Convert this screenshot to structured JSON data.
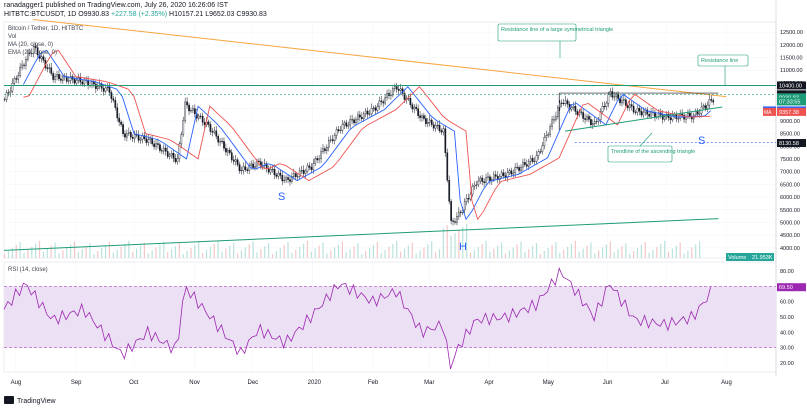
{
  "header": {
    "publish_line": "ranadagger1 published on TradingView.com, July 26, 2020 16:26:06 IST",
    "symbol_line_prefix": "HITBTC:BTCUSDT, 1D",
    "ohlc": {
      "open_label": "O",
      "open": "9930.83",
      "high_label": "H",
      "high": "10157.21",
      "low_label": "L",
      "low": "9652.03",
      "close_label": "C",
      "close": "9930.83",
      "change": "+227.58 (+2.35%)"
    },
    "title_short": "Bitcoin / Tether, 1D, HITBTC",
    "indicator_1": "Vol",
    "indicator_2": "MA (20, close, 0)",
    "indicator_3": "EMA (20, close, 0)"
  },
  "colors": {
    "up": "#26a69a",
    "down": "#ef5350",
    "candle": "#131722",
    "ema": "#2962ff",
    "ma": "#ef5350",
    "resistance": "#f7a540",
    "trend": "#1e9c78",
    "rsi_line": "#9c27b0",
    "rsi_band": "#ece0f5",
    "price_tag_blue": "#2962ff",
    "price_tag_green": "#1e9c78",
    "price_tag_dark": "#131722",
    "annotation": "#2962ff"
  },
  "chart_data": [
    {
      "type": "candlestick",
      "title": "Bitcoin / Tether, 1D, HITBTC",
      "y_ticks": [
        "12500.00",
        "12000.00",
        "11500.00",
        "11000.00",
        "10500.00",
        "9500.00",
        "9000.00",
        "8500.00",
        "8000.00",
        "7500.00",
        "7000.00",
        "6500.00",
        "6000.00",
        "5500.00",
        "5000.00",
        "4500.00",
        "4000.00"
      ],
      "ylim": [
        3600,
        12900
      ],
      "x_ticks": [
        "Aug",
        "Sep",
        "Oct",
        "Nov",
        "Dec",
        "2020",
        "Feb",
        "Mar",
        "Apr",
        "May",
        "Jun",
        "Jul",
        "Aug"
      ],
      "price_tags": [
        {
          "label": "10400.00",
          "value": 10400,
          "style": "dark"
        },
        {
          "label": "10400.00",
          "value": 10050,
          "style": "dark"
        },
        {
          "label": "10000.00",
          "value": 9990,
          "style": "dark"
        },
        {
          "label": "9930.83",
          "value": 9930.83,
          "style": "green"
        },
        {
          "label": "07:33:55",
          "value": 9770,
          "style": "green"
        },
        {
          "label": "9415.35",
          "value": 9415.35,
          "style": "blue",
          "series": "EMA"
        },
        {
          "label": "9357.38",
          "value": 9357.38,
          "style": "red",
          "series": "MA"
        },
        {
          "label": "8130.58",
          "value": 8130.58,
          "style": "dark"
        }
      ],
      "volume_label": "Volume",
      "volume_value": "21.953K",
      "annotations": [
        {
          "text": "Resistance line of a large symmetrical triangle"
        },
        {
          "text": "Resistance line"
        },
        {
          "text": "Trendline of the ascending triangle"
        },
        {
          "text": "S"
        },
        {
          "text": "S"
        },
        {
          "text": "H"
        }
      ],
      "series_close": [
        {
          "date": "2019-07-26",
          "close": 9850
        },
        {
          "date": "2019-08-06",
          "close": 11450
        },
        {
          "date": "2019-08-10",
          "close": 11900
        },
        {
          "date": "2019-08-20",
          "close": 10750
        },
        {
          "date": "2019-09-05",
          "close": 10550
        },
        {
          "date": "2019-09-18",
          "close": 10200
        },
        {
          "date": "2019-09-25",
          "close": 8500
        },
        {
          "date": "2019-10-08",
          "close": 8250
        },
        {
          "date": "2019-10-23",
          "close": 7450
        },
        {
          "date": "2019-10-27",
          "close": 9650
        },
        {
          "date": "2019-11-08",
          "close": 8800
        },
        {
          "date": "2019-11-25",
          "close": 7050
        },
        {
          "date": "2019-12-04",
          "close": 7350
        },
        {
          "date": "2019-12-18",
          "close": 6650
        },
        {
          "date": "2019-12-31",
          "close": 7200
        },
        {
          "date": "2020-01-15",
          "close": 8750
        },
        {
          "date": "2020-02-01",
          "close": 9450
        },
        {
          "date": "2020-02-13",
          "close": 10350
        },
        {
          "date": "2020-02-26",
          "close": 9100
        },
        {
          "date": "2020-03-08",
          "close": 8600
        },
        {
          "date": "2020-03-12",
          "close": 4950
        },
        {
          "date": "2020-03-16",
          "close": 5300
        },
        {
          "date": "2020-03-25",
          "close": 6600
        },
        {
          "date": "2020-04-10",
          "close": 6900
        },
        {
          "date": "2020-04-25",
          "close": 7550
        },
        {
          "date": "2020-05-08",
          "close": 9800
        },
        {
          "date": "2020-05-25",
          "close": 8850
        },
        {
          "date": "2020-06-02",
          "close": 10100
        },
        {
          "date": "2020-06-15",
          "close": 9400
        },
        {
          "date": "2020-07-01",
          "close": 9150
        },
        {
          "date": "2020-07-15",
          "close": 9200
        },
        {
          "date": "2020-07-26",
          "close": 9930.83
        }
      ]
    },
    {
      "type": "line",
      "title": "RSI (14, close)",
      "y_ticks": [
        "80.00",
        "70.00",
        "60.00",
        "50.00",
        "40.00",
        "30.00",
        "20.00"
      ],
      "ylim": [
        14,
        86
      ],
      "band": [
        30,
        70
      ],
      "last_value_label": "69.50",
      "series": [
        {
          "date": "2019-07-26",
          "rsi": 55
        },
        {
          "date": "2019-08-06",
          "rsi": 72
        },
        {
          "date": "2019-08-20",
          "rsi": 48
        },
        {
          "date": "2019-09-05",
          "rsi": 55
        },
        {
          "date": "2019-09-25",
          "rsi": 25
        },
        {
          "date": "2019-10-08",
          "rsi": 40
        },
        {
          "date": "2019-10-23",
          "rsi": 28
        },
        {
          "date": "2019-10-27",
          "rsi": 70
        },
        {
          "date": "2019-11-08",
          "rsi": 52
        },
        {
          "date": "2019-11-25",
          "rsi": 26
        },
        {
          "date": "2019-12-04",
          "rsi": 42
        },
        {
          "date": "2019-12-18",
          "rsi": 33
        },
        {
          "date": "2019-12-31",
          "rsi": 50
        },
        {
          "date": "2020-01-15",
          "rsi": 72
        },
        {
          "date": "2020-02-01",
          "rsi": 60
        },
        {
          "date": "2020-02-13",
          "rsi": 67
        },
        {
          "date": "2020-02-26",
          "rsi": 40
        },
        {
          "date": "2020-03-08",
          "rsi": 45
        },
        {
          "date": "2020-03-12",
          "rsi": 17
        },
        {
          "date": "2020-03-16",
          "rsi": 30
        },
        {
          "date": "2020-03-25",
          "rsi": 48
        },
        {
          "date": "2020-04-10",
          "rsi": 50
        },
        {
          "date": "2020-04-25",
          "rsi": 58
        },
        {
          "date": "2020-05-08",
          "rsi": 80
        },
        {
          "date": "2020-05-25",
          "rsi": 50
        },
        {
          "date": "2020-06-02",
          "rsi": 72
        },
        {
          "date": "2020-06-15",
          "rsi": 48
        },
        {
          "date": "2020-07-01",
          "rsi": 45
        },
        {
          "date": "2020-07-15",
          "rsi": 50
        },
        {
          "date": "2020-07-26",
          "rsi": 69.5
        }
      ]
    }
  ],
  "footer": {
    "brand": "TradingView"
  }
}
